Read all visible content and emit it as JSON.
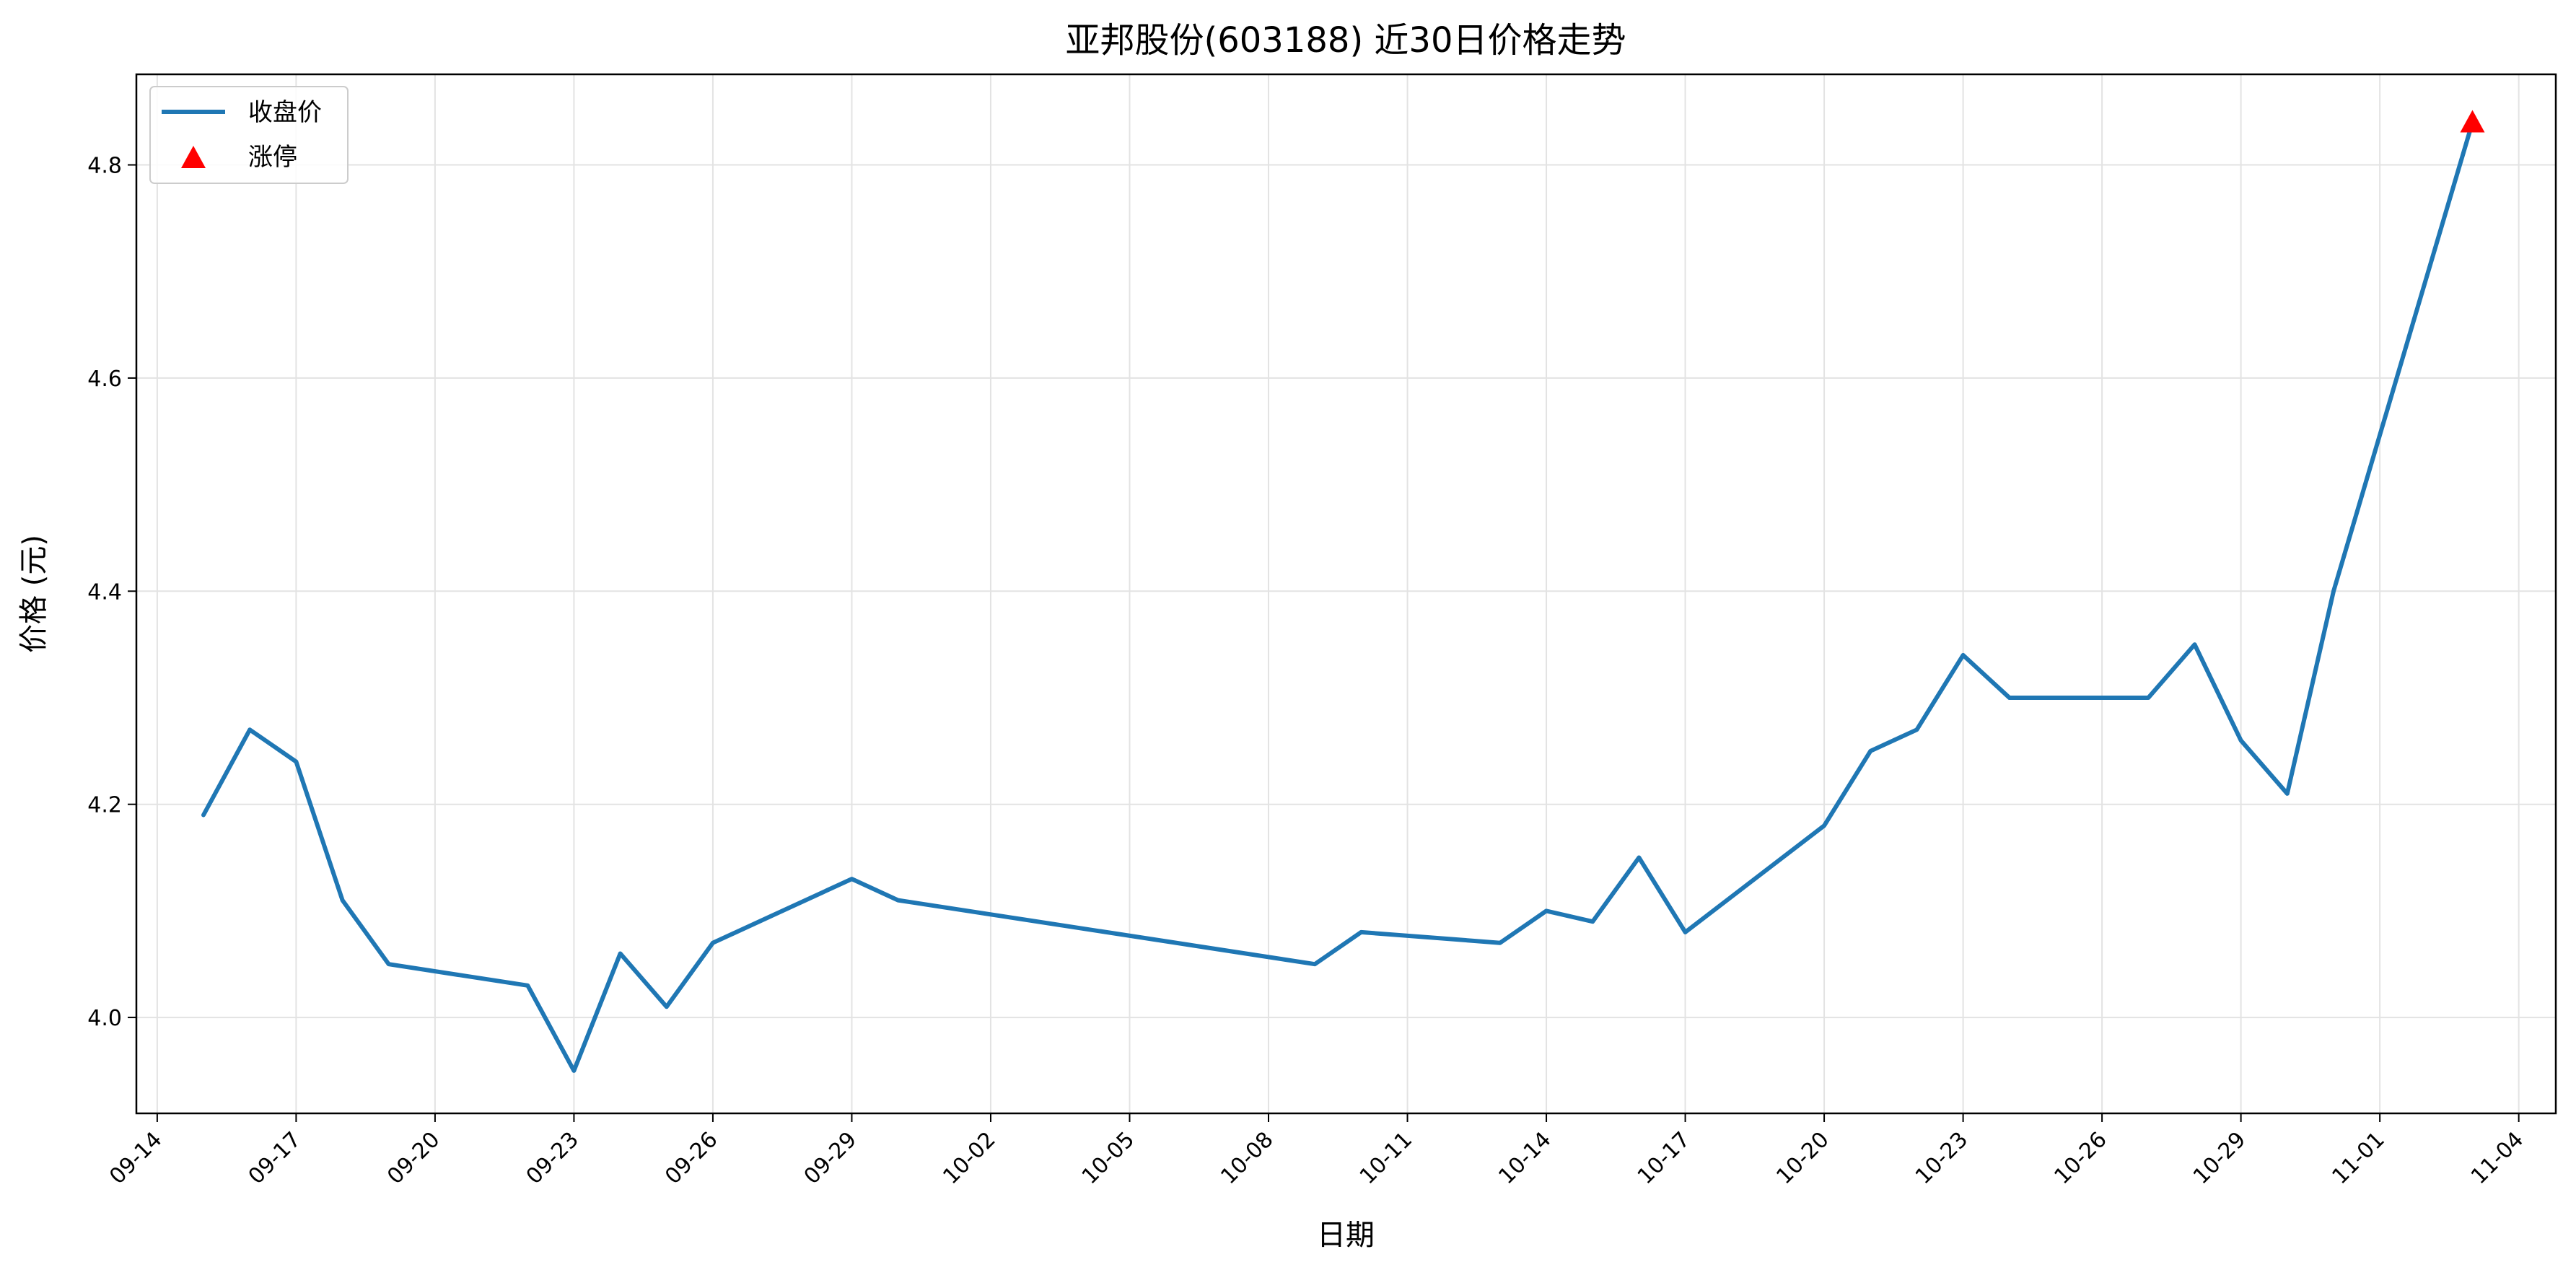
{
  "chart_data": {
    "type": "line",
    "title": "亚邦股份(603188) 近30日价格走势",
    "xlabel": "日期",
    "ylabel": "价格 (元)",
    "grid": true,
    "legend_position": "top-left",
    "x_range": [
      "2023-09-13",
      "2023-11-05"
    ],
    "xticks": [
      "09-14",
      "09-17",
      "09-20",
      "09-23",
      "09-26",
      "09-29",
      "10-02",
      "10-05",
      "10-08",
      "10-11",
      "10-14",
      "10-17",
      "10-20",
      "10-23",
      "10-26",
      "10-29",
      "11-01",
      "11-04"
    ],
    "ylim": [
      3.91,
      4.885
    ],
    "yticks": [
      "4.0",
      "4.2",
      "4.4",
      "4.6",
      "4.8"
    ],
    "series": [
      {
        "name": "收盘价",
        "color": "#1f77b4",
        "points": [
          {
            "x": "2023-09-15",
            "y": 4.19
          },
          {
            "x": "2023-09-16",
            "y": 4.27
          },
          {
            "x": "2023-09-17",
            "y": 4.24
          },
          {
            "x": "2023-09-18",
            "y": 4.11
          },
          {
            "x": "2023-09-19",
            "y": 4.05
          },
          {
            "x": "2023-09-22",
            "y": 4.03
          },
          {
            "x": "2023-09-23",
            "y": 3.95
          },
          {
            "x": "2023-09-24",
            "y": 4.06
          },
          {
            "x": "2023-09-25",
            "y": 4.01
          },
          {
            "x": "2023-09-26",
            "y": 4.07
          },
          {
            "x": "2023-09-29",
            "y": 4.13
          },
          {
            "x": "2023-09-30",
            "y": 4.11
          },
          {
            "x": "2023-10-09",
            "y": 4.05
          },
          {
            "x": "2023-10-10",
            "y": 4.08
          },
          {
            "x": "2023-10-13",
            "y": 4.07
          },
          {
            "x": "2023-10-14",
            "y": 4.1
          },
          {
            "x": "2023-10-15",
            "y": 4.09
          },
          {
            "x": "2023-10-16",
            "y": 4.15
          },
          {
            "x": "2023-10-17",
            "y": 4.08
          },
          {
            "x": "2023-10-20",
            "y": 4.18
          },
          {
            "x": "2023-10-21",
            "y": 4.25
          },
          {
            "x": "2023-10-22",
            "y": 4.27
          },
          {
            "x": "2023-10-23",
            "y": 4.34
          },
          {
            "x": "2023-10-24",
            "y": 4.3
          },
          {
            "x": "2023-10-27",
            "y": 4.3
          },
          {
            "x": "2023-10-28",
            "y": 4.35
          },
          {
            "x": "2023-10-29",
            "y": 4.26
          },
          {
            "x": "2023-10-30",
            "y": 4.21
          },
          {
            "x": "2023-10-31",
            "y": 4.4
          },
          {
            "x": "2023-11-03",
            "y": 4.84
          }
        ]
      },
      {
        "name": "涨停",
        "marker": "triangle",
        "color": "#ff0000",
        "points": [
          {
            "x": "2023-11-03",
            "y": 4.84
          }
        ]
      }
    ]
  }
}
